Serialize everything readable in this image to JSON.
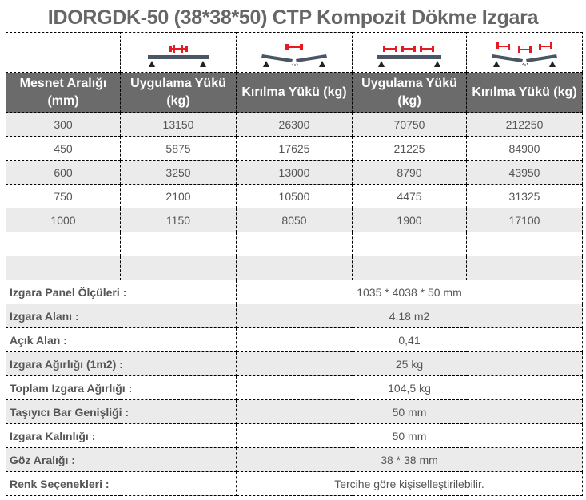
{
  "title": "IDORGDK-50 (38*38*50) CTP Kompozit Dökme Izgara",
  "icons": [
    "single-load-beam-icon",
    "single-load-broken-beam-icon",
    "distributed-load-beam-icon",
    "distributed-load-broken-beam-icon"
  ],
  "colors": {
    "header_bg": "#6b6b6b",
    "row_alt": "#ebebeb",
    "load": "#e8191f",
    "beam": "#4a5663"
  },
  "headers": [
    "Mesnet Aralığı (mm)",
    "Uygulama Yükü (kg)",
    "Kırılma Yükü (kg)",
    "Uygulama Yükü (kg)",
    "Kırılma Yükü (kg)"
  ],
  "rows": [
    [
      "300",
      "13150",
      "26300",
      "70750",
      "212250"
    ],
    [
      "450",
      "5875",
      "17625",
      "21225",
      "84900"
    ],
    [
      "600",
      "3250",
      "13000",
      "8790",
      "43950"
    ],
    [
      "750",
      "2100",
      "10500",
      "4475",
      "31325"
    ],
    [
      "1000",
      "1150",
      "8050",
      "1900",
      "17100"
    ],
    [
      "",
      "",
      "",
      "",
      ""
    ],
    [
      "",
      "",
      "",
      "",
      ""
    ]
  ],
  "specs": [
    {
      "label": "Izgara Panel Ölçüleri :",
      "value": "1035 * 4038 * 50 mm"
    },
    {
      "label": "Izgara Alanı :",
      "value": "4,18 m2"
    },
    {
      "label": "Açık Alan :",
      "value": "0,41"
    },
    {
      "label": "Izgara Ağırlığı (1m2) :",
      "value": "25 kg"
    },
    {
      "label": "Toplam Izgara Ağırlığı :",
      "value": "104,5 kg"
    },
    {
      "label": "Taşıyıcı Bar Genişliği :",
      "value": "50 mm"
    },
    {
      "label": "Izgara Kalınlığı :",
      "value": "50 mm"
    },
    {
      "label": "Göz Aralığı :",
      "value": "38 * 38 mm"
    },
    {
      "label": "Renk Seçenekleri :",
      "value": "Tercihe göre kişiselleştirilebilir."
    }
  ]
}
